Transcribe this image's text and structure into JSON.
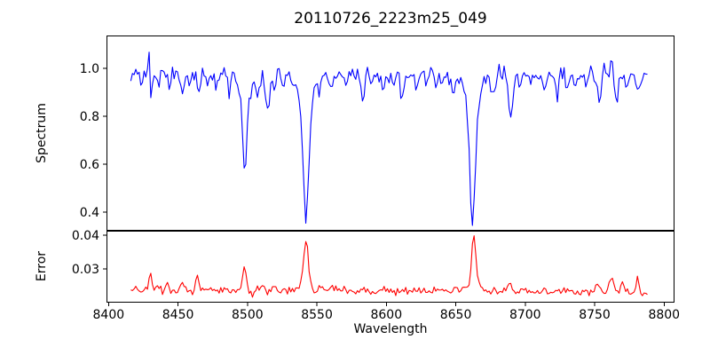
{
  "title": "20110726_2223m25_049",
  "colors": {
    "spectrum_line": "#0000ff",
    "error_line": "#ff0000",
    "axis": "#000000",
    "background": "#ffffff"
  },
  "x_axis": {
    "label": "Wavelength",
    "xlim": [
      8398.5,
      8807.5
    ],
    "xtick_values": [
      8400,
      8450,
      8500,
      8550,
      8600,
      8650,
      8700,
      8750,
      8800
    ],
    "xtick_labels": [
      "8400",
      "8450",
      "8500",
      "8550",
      "8600",
      "8650",
      "8700",
      "8750",
      "8800"
    ]
  },
  "chart_data": [
    {
      "panel": "spectrum",
      "type": "line",
      "series_name": "Spectrum",
      "color": "#0000ff",
      "ylabel": "Spectrum",
      "ylim": [
        0.322,
        1.137
      ],
      "ytick_values": [
        0.4,
        0.6,
        0.8,
        1.0
      ],
      "ytick_labels": [
        "0.4",
        "0.6",
        "0.8",
        "1.0"
      ],
      "x_start": 8416,
      "x_end": 8789,
      "x_step": 1.2,
      "continuum": 0.973,
      "base_slope": 0,
      "noise_amplitude": 0.045,
      "noise_seed": 2011,
      "features_note": "each feature = [center_wavelength, delta(neg=absorption dip, pos=spike), sigma]",
      "features": [
        [
          8429,
          0.1,
          0.7
        ],
        [
          8430.6,
          -0.12,
          0.8
        ],
        [
          8436,
          -0.04,
          0.9
        ],
        [
          8444,
          -0.05,
          1.0
        ],
        [
          8453,
          -0.09,
          1.1
        ],
        [
          8459,
          -0.04,
          0.9
        ],
        [
          8465,
          -0.08,
          1.2
        ],
        [
          8472,
          -0.04,
          0.9
        ],
        [
          8478,
          -0.04,
          1.0
        ],
        [
          8487,
          -0.07,
          1.1
        ],
        [
          8493,
          -0.05,
          0.9
        ],
        [
          8498.0,
          -0.39,
          1.6
        ],
        [
          8498.0,
          -0.03,
          4.0
        ],
        [
          8503,
          -0.06,
          1.0
        ],
        [
          8507,
          -0.1,
          1.3
        ],
        [
          8514.5,
          -0.15,
          1.7
        ],
        [
          8520,
          -0.05,
          1.0
        ],
        [
          8526,
          -0.05,
          1.3
        ],
        [
          8533,
          -0.04,
          1.0
        ],
        [
          8542.1,
          -0.49,
          2.0
        ],
        [
          8542.1,
          -0.12,
          5.5
        ],
        [
          8552,
          -0.04,
          1.0
        ],
        [
          8560,
          -0.04,
          1.2
        ],
        [
          8571,
          -0.05,
          1.2
        ],
        [
          8583,
          -0.08,
          1.3
        ],
        [
          8591,
          -0.04,
          1.0
        ],
        [
          8598,
          -0.05,
          1.2
        ],
        [
          8605,
          -0.04,
          1.0
        ],
        [
          8611,
          -0.08,
          1.3
        ],
        [
          8622,
          -0.05,
          1.1
        ],
        [
          8629,
          -0.04,
          1.0
        ],
        [
          8636,
          -0.04,
          1.2
        ],
        [
          8648,
          -0.06,
          1.4
        ],
        [
          8662.1,
          -0.51,
          2.1
        ],
        [
          8662.1,
          -0.1,
          5.5
        ],
        [
          8677,
          -0.1,
          1.2
        ],
        [
          8681,
          0.06,
          0.8
        ],
        [
          8689.5,
          -0.2,
          1.5
        ],
        [
          8696,
          -0.05,
          1.0
        ],
        [
          8704,
          -0.04,
          1.0
        ],
        [
          8714,
          -0.06,
          1.3
        ],
        [
          8723,
          -0.08,
          1.3
        ],
        [
          8730,
          -0.05,
          1.1
        ],
        [
          8736,
          -0.05,
          1.2
        ],
        [
          8744,
          -0.04,
          1.0
        ],
        [
          8753,
          -0.09,
          1.3
        ],
        [
          8758,
          0.05,
          0.7
        ],
        [
          8762,
          0.1,
          0.7
        ],
        [
          8766,
          -0.1,
          1.2
        ],
        [
          8773,
          -0.05,
          1.0
        ],
        [
          8781,
          -0.09,
          1.2
        ]
      ]
    },
    {
      "panel": "error",
      "type": "line",
      "series_name": "Error",
      "color": "#ff0000",
      "ylabel": "Error",
      "ylim": [
        0.02,
        0.0413
      ],
      "ytick_values": [
        0.03,
        0.04
      ],
      "ytick_labels": [
        "0.03",
        "0.04"
      ],
      "x_start": 8416,
      "x_end": 8789,
      "x_step": 1.2,
      "continuum": 0.0236,
      "base_slope": -1.6e-06,
      "noise_amplitude": 0.0015,
      "noise_seed": 726,
      "features_note": "each feature = [center_wavelength, delta(pos=error spike), sigma]",
      "features": [
        [
          8430,
          0.0062,
          1.0
        ],
        [
          8436,
          0.0012,
          0.8
        ],
        [
          8442,
          0.0015,
          0.9
        ],
        [
          8453,
          0.0018,
          0.9
        ],
        [
          8464,
          0.005,
          1.1
        ],
        [
          8473,
          0.001,
          0.8
        ],
        [
          8481,
          0.0012,
          0.9
        ],
        [
          8490,
          0.001,
          0.8
        ],
        [
          8498,
          0.0072,
          1.4
        ],
        [
          8504,
          -0.0024,
          1.0
        ],
        [
          8507,
          0.002,
          0.9
        ],
        [
          8511,
          0.0016,
          1.0
        ],
        [
          8520,
          0.0012,
          1.0
        ],
        [
          8527,
          0.001,
          0.9
        ],
        [
          8542.1,
          0.0135,
          1.5
        ],
        [
          8542.1,
          0.0022,
          4.0
        ],
        [
          8553,
          0.0012,
          1.0
        ],
        [
          8562,
          0.0008,
          0.9
        ],
        [
          8570,
          0.001,
          1.0
        ],
        [
          8583,
          0.0013,
          1.0
        ],
        [
          8598,
          0.0008,
          0.9
        ],
        [
          8611,
          0.001,
          1.0
        ],
        [
          8625,
          0.0007,
          0.9
        ],
        [
          8640,
          0.0008,
          1.0
        ],
        [
          8663,
          0.015,
          1.4
        ],
        [
          8663,
          0.0022,
          4.0
        ],
        [
          8672,
          0.0012,
          1.0
        ],
        [
          8689,
          0.0026,
          1.2
        ],
        [
          8700,
          0.0008,
          0.9
        ],
        [
          8714,
          0.0008,
          1.0
        ],
        [
          8728,
          0.0008,
          0.9
        ],
        [
          8742,
          0.001,
          1.0
        ],
        [
          8752,
          0.0015,
          1.0
        ],
        [
          8762,
          0.004,
          1.4
        ],
        [
          8770,
          0.004,
          1.2
        ],
        [
          8781,
          0.0047,
          1.0
        ],
        [
          8789,
          -0.001,
          0.8
        ]
      ]
    }
  ]
}
